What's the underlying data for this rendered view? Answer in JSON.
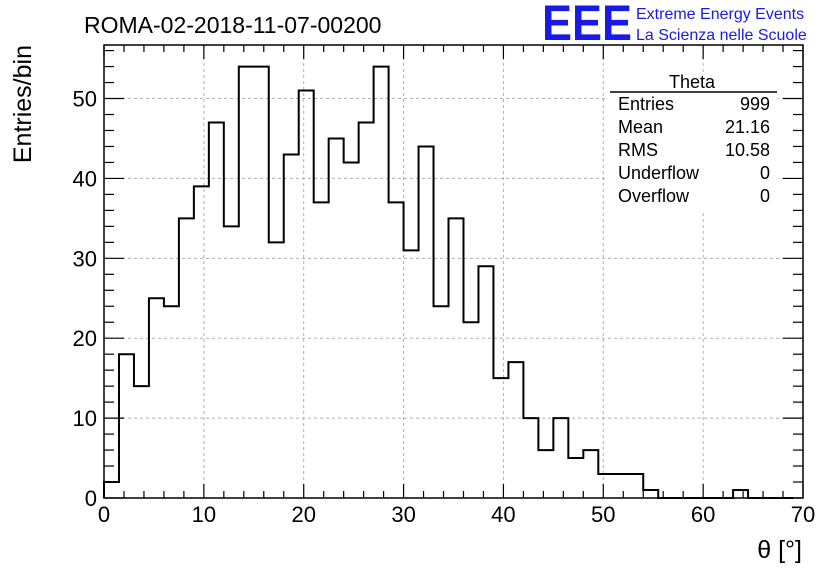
{
  "chart_data": {
    "type": "bar",
    "title": "ROMA-02-2018-11-07-00200",
    "xlabel": "θ [°]",
    "ylabel": "Entries/bin",
    "xlim": [
      0,
      70
    ],
    "ylim": [
      0,
      56.7
    ],
    "grid": true,
    "bin_width": 1.5,
    "bin_start": 0,
    "values": [
      2,
      18,
      14,
      25,
      24,
      35,
      39,
      47,
      34,
      54,
      54,
      32,
      43,
      51,
      37,
      45,
      42,
      47,
      54,
      37,
      31,
      44,
      24,
      35,
      22,
      29,
      15,
      17,
      10,
      6,
      10,
      5,
      6,
      3,
      3,
      3,
      1,
      0,
      0,
      0,
      0,
      0,
      1,
      0,
      0,
      0
    ],
    "xticks": [
      "0",
      "10",
      "20",
      "30",
      "40",
      "50",
      "60",
      "70"
    ],
    "yticks": [
      "0",
      "10",
      "20",
      "30",
      "40",
      "50"
    ],
    "stats": {
      "name": "Theta",
      "rows": [
        {
          "label": "Entries",
          "value": "999"
        },
        {
          "label": "Mean",
          "value": "21.16"
        },
        {
          "label": "RMS",
          "value": "10.58"
        },
        {
          "label": "Underflow",
          "value": "0"
        },
        {
          "label": "Overflow",
          "value": "0"
        }
      ]
    }
  },
  "logo": {
    "letters": "EEE",
    "line1": "Extreme Energy Events",
    "line2": "La Scienza nelle Scuole",
    "color": "#1a1ae6"
  }
}
